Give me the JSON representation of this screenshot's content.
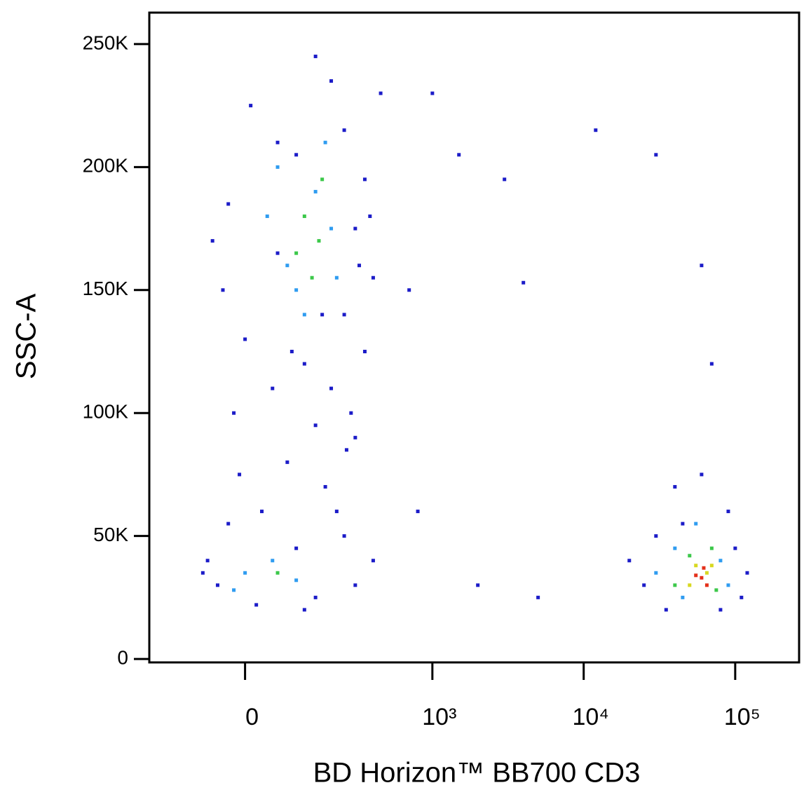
{
  "chart_data": {
    "type": "scatter",
    "x_label": "BD Horizon™ BB700  CD3",
    "y_label": "SSC-A",
    "xscale": "biexponential",
    "xlim": [
      -236,
      264000
    ],
    "xticks": [
      0,
      {
        "value": 1000,
        "label": "10³"
      },
      {
        "value": 10000,
        "label": "10⁴"
      },
      {
        "value": 100000,
        "label": "10⁵"
      }
    ],
    "ylim": [
      -1400,
      262800
    ],
    "yticks": [
      0,
      {
        "value": 50000,
        "label": "50K"
      },
      {
        "value": 100000,
        "label": "100K"
      },
      {
        "value": 150000,
        "label": "150K"
      },
      {
        "value": 200000,
        "label": "200K"
      },
      {
        "value": 250000,
        "label": "250K"
      }
    ],
    "series": [
      {
        "color": "#1c1cc8",
        "x": [
          -50,
          20,
          150,
          -70,
          100,
          250,
          30,
          180,
          80,
          300,
          -20,
          200,
          120,
          350,
          0,
          250,
          -40,
          400,
          60,
          300,
          -30,
          350,
          100,
          250,
          10,
          200,
          150,
          450,
          -60,
          380,
          50,
          280,
          150,
          -10,
          220,
          -80,
          300,
          120,
          60,
          320,
          170,
          90,
          260,
          -30,
          400,
          25000,
          30000,
          120000,
          90000,
          40000,
          20000,
          110000,
          35000,
          60000,
          80000,
          45000,
          100000,
          2000,
          5000,
          800,
          3000,
          1500,
          12000,
          30000,
          60000,
          1000,
          700,
          4000,
          70000
        ],
        "values": [
          30000,
          22000,
          25000,
          40000,
          45000,
          50000,
          60000,
          70000,
          80000,
          90000,
          100000,
          110000,
          120000,
          125000,
          130000,
          140000,
          150000,
          155000,
          165000,
          175000,
          185000,
          195000,
          205000,
          215000,
          225000,
          235000,
          245000,
          230000,
          170000,
          180000,
          110000,
          100000,
          95000,
          75000,
          60000,
          35000,
          30000,
          20000,
          210000,
          160000,
          140000,
          125000,
          85000,
          55000,
          40000,
          30000,
          50000,
          35000,
          60000,
          70000,
          40000,
          25000,
          20000,
          75000,
          20000,
          55000,
          45000,
          30000,
          25000,
          60000,
          195000,
          205000,
          215000,
          205000,
          160000,
          230000,
          150000,
          153000,
          120000
        ]
      },
      {
        "color": "#2f9cf0",
        "x": [
          50,
          0,
          100,
          -20,
          150,
          80,
          200,
          120,
          60,
          180,
          100,
          220,
          40,
          40000,
          80000,
          55000,
          45000,
          90000,
          30000
        ],
        "values": [
          40000,
          35000,
          32000,
          28000,
          190000,
          160000,
          175000,
          140000,
          200000,
          210000,
          150000,
          155000,
          180000,
          45000,
          40000,
          55000,
          25000,
          30000,
          35000
        ]
      },
      {
        "color": "#3cc84a",
        "x": [
          120,
          160,
          100,
          170,
          140,
          60,
          50000,
          70000,
          40000,
          75000
        ],
        "values": [
          180000,
          170000,
          165000,
          195000,
          155000,
          35000,
          42000,
          45000,
          30000,
          28000
        ]
      },
      {
        "color": "#d8d820",
        "x": [
          55000,
          65000,
          50000,
          70000
        ],
        "values": [
          38000,
          35000,
          30000,
          38000
        ]
      },
      {
        "color": "#e4301a",
        "x": [
          60000,
          65000,
          55000,
          62000
        ],
        "values": [
          33000,
          30000,
          34000,
          37000
        ]
      }
    ]
  }
}
